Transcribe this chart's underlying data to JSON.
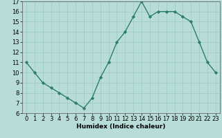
{
  "x": [
    0,
    1,
    2,
    3,
    4,
    5,
    6,
    7,
    8,
    9,
    10,
    11,
    12,
    13,
    14,
    15,
    16,
    17,
    18,
    19,
    20,
    21,
    22,
    23
  ],
  "y": [
    11,
    10,
    9,
    8.5,
    8,
    7.5,
    7,
    6.5,
    7.5,
    9.5,
    11,
    13,
    14,
    15.5,
    17,
    15.5,
    16,
    16,
    16,
    15.5,
    15,
    13,
    11,
    10
  ],
  "line_color": "#2d7c6e",
  "marker": "D",
  "marker_size": 2.2,
  "bg_color": "#b8ddd8",
  "grid_color": "#9cc8c2",
  "xlabel": "Humidex (Indice chaleur)",
  "ylim": [
    6,
    17
  ],
  "xlim": [
    -0.5,
    23.5
  ],
  "yticks": [
    6,
    7,
    8,
    9,
    10,
    11,
    12,
    13,
    14,
    15,
    16,
    17
  ],
  "xticks": [
    0,
    1,
    2,
    3,
    4,
    5,
    6,
    7,
    8,
    9,
    10,
    11,
    12,
    13,
    14,
    15,
    16,
    17,
    18,
    19,
    20,
    21,
    22,
    23
  ],
  "xlabel_fontsize": 6.5,
  "tick_fontsize": 6,
  "line_width": 1.0
}
